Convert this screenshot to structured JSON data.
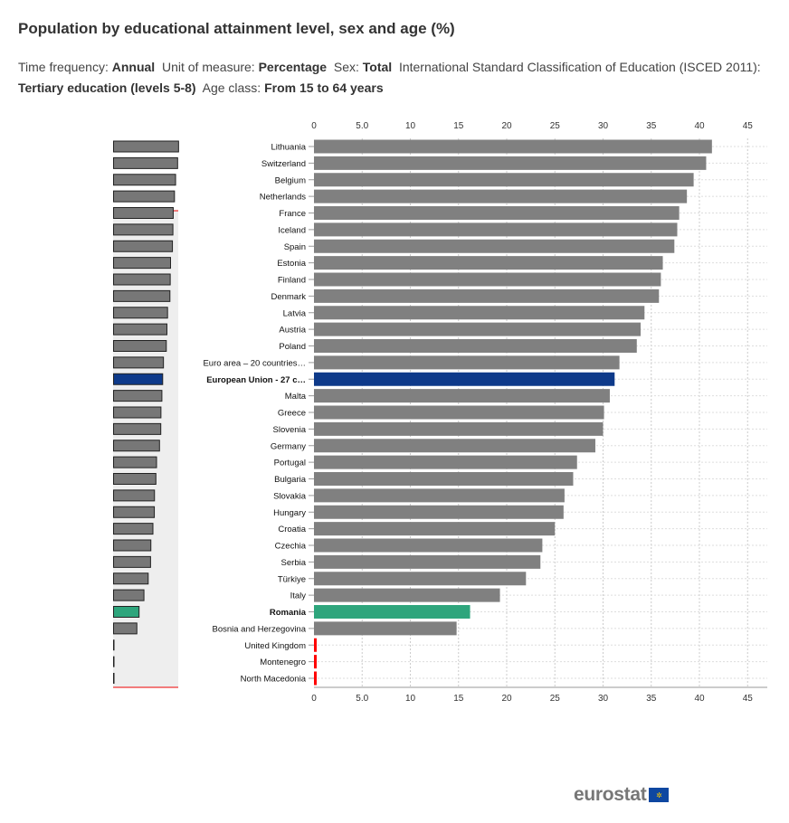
{
  "title": "Population by educational attainment level, sex and age (%)",
  "filters": [
    {
      "label": "Time frequency:",
      "value": "Annual"
    },
    {
      "label": "Unit of measure:",
      "value": "Percentage"
    },
    {
      "label": "Sex:",
      "value": "Total"
    },
    {
      "label": "International Standard Classification of Education (ISCED 2011):",
      "value": "Tertiary education (levels 5-8)"
    },
    {
      "label": "Age class:",
      "value": "From 15 to 64 years"
    }
  ],
  "logo": "eurostat",
  "colors": {
    "default": "#808080",
    "eu": "#0e3a8a",
    "highlight": "#2ea57c",
    "missing": "#ff0000"
  },
  "chart_data": {
    "type": "bar",
    "orientation": "horizontal",
    "xlim": [
      0,
      45
    ],
    "ticks": [
      "0",
      "5.0",
      "10",
      "15",
      "20",
      "25",
      "30",
      "35",
      "40",
      "45"
    ],
    "grid": true,
    "categories": [
      "Lithuania",
      "Switzerland",
      "Belgium",
      "Netherlands",
      "France",
      "Iceland",
      "Spain",
      "Estonia",
      "Finland",
      "Denmark",
      "Latvia",
      "Austria",
      "Poland",
      "Euro area – 20 countries…",
      "European Union - 27 c…",
      "Malta",
      "Greece",
      "Slovenia",
      "Germany",
      "Portugal",
      "Bulgaria",
      "Slovakia",
      "Hungary",
      "Croatia",
      "Czechia",
      "Serbia",
      "Türkiye",
      "Italy",
      "Romania",
      "Bosnia and Herzegovina",
      "United Kingdom",
      "Montenegro",
      "North Macedonia"
    ],
    "values": [
      41.3,
      40.7,
      39.4,
      38.7,
      37.9,
      37.7,
      37.4,
      36.2,
      36.0,
      35.8,
      34.3,
      33.9,
      33.5,
      31.7,
      31.2,
      30.7,
      30.1,
      30.0,
      29.2,
      27.3,
      26.9,
      26.0,
      25.9,
      25.0,
      23.7,
      23.5,
      22.0,
      19.3,
      16.2,
      14.8,
      null,
      null,
      null
    ],
    "bold": [
      "European Union - 27 c…",
      "Romania"
    ],
    "eu_category": "European Union - 27 c…",
    "highlight_category": "Romania"
  }
}
